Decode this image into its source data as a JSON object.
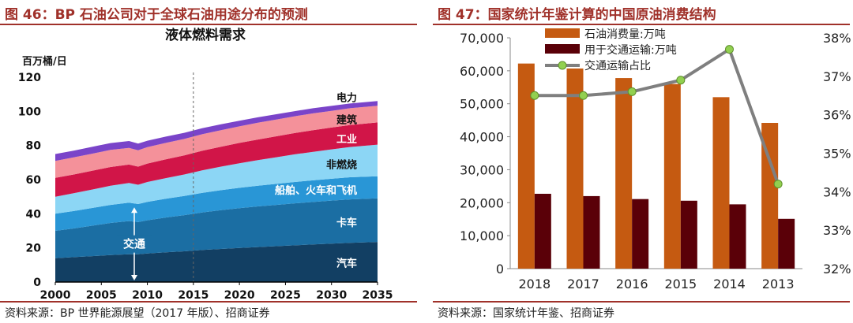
{
  "left_panel": {
    "figure_title": "图 46：BP 石油公司对于全球石油用途分布的预测",
    "source": "资料来源：BP 世界能源展望（2017 年版）、招商证券"
  },
  "right_panel": {
    "figure_title": "图 47：国家统计年鉴计算的中国原油消费结构",
    "source": "资料来源：国家统计年鉴、招商证券"
  },
  "chart_data": [
    {
      "type": "area",
      "stacked": true,
      "title": "液体燃料需求",
      "ylabel": "百万桶/日",
      "ylim": [
        0,
        120
      ],
      "yticks": [
        0,
        20,
        40,
        60,
        80,
        100,
        120
      ],
      "xlim": [
        2000,
        2035
      ],
      "xticks": [
        2000,
        2005,
        2010,
        2015,
        2020,
        2025,
        2030,
        2035
      ],
      "grid": false,
      "projection_start": 2015,
      "x": [
        2000,
        2002,
        2004,
        2006,
        2008,
        2009,
        2010,
        2012,
        2014,
        2016,
        2018,
        2020,
        2022,
        2024,
        2026,
        2028,
        2030,
        2032,
        2035
      ],
      "series": [
        {
          "name": "汽车",
          "color": "#123f63",
          "values": [
            14.0,
            14.6,
            15.2,
            15.8,
            16.3,
            16.3,
            16.7,
            17.4,
            18.0,
            18.8,
            19.4,
            20.0,
            20.5,
            21.0,
            21.5,
            22.0,
            22.5,
            23.0,
            23.5
          ]
        },
        {
          "name": "卡车",
          "color": "#1b6ea3",
          "values": [
            16.0,
            16.8,
            17.8,
            18.8,
            19.4,
            18.8,
            19.5,
            20.4,
            21.2,
            22.0,
            22.7,
            23.3,
            23.8,
            24.2,
            24.6,
            24.9,
            25.2,
            25.4,
            25.5
          ]
        },
        {
          "name": "船舶、火车和飞机",
          "color": "#2996d6",
          "values": [
            10.0,
            10.2,
            10.4,
            10.6,
            10.8,
            10.6,
            10.8,
            11.0,
            11.2,
            11.5,
            11.7,
            11.9,
            12.1,
            12.3,
            12.5,
            12.7,
            12.8,
            13.0,
            13.0
          ]
        },
        {
          "name": "非燃烧",
          "color": "#8cd6f5",
          "values": [
            10.0,
            10.4,
            10.8,
            11.2,
            11.5,
            11.3,
            11.6,
            12.1,
            12.6,
            13.2,
            13.8,
            14.4,
            15.0,
            15.6,
            16.2,
            16.7,
            17.2,
            17.7,
            18.5
          ]
        },
        {
          "name": "工业",
          "color": "#d11548",
          "values": [
            11.0,
            11.0,
            11.0,
            11.0,
            10.8,
            10.6,
            10.8,
            11.0,
            11.2,
            11.5,
            11.7,
            11.9,
            12.1,
            12.3,
            12.5,
            12.7,
            12.8,
            12.9,
            13.0
          ]
        },
        {
          "name": "建筑",
          "color": "#f4919a",
          "values": [
            10.0,
            10.0,
            10.0,
            10.0,
            9.8,
            9.6,
            9.6,
            9.6,
            9.6,
            9.7,
            9.7,
            9.7,
            9.8,
            9.8,
            9.8,
            9.8,
            9.8,
            9.8,
            9.8
          ]
        },
        {
          "name": "电力",
          "color": "#7a44c9",
          "values": [
            4.0,
            4.0,
            4.0,
            4.0,
            4.0,
            3.9,
            3.8,
            3.7,
            3.6,
            3.5,
            3.4,
            3.3,
            3.2,
            3.1,
            3.0,
            3.0,
            2.9,
            2.8,
            2.7
          ]
        }
      ],
      "annotations": [
        {
          "text": "交通"
        }
      ]
    },
    {
      "type": "bar",
      "categories": [
        "2018",
        "2017",
        "2016",
        "2015",
        "2014",
        "2013"
      ],
      "ylim": [
        0,
        70000
      ],
      "yticks": [
        0,
        10000,
        20000,
        30000,
        40000,
        50000,
        60000,
        70000
      ],
      "y2lim": [
        32,
        38
      ],
      "y2ticks": [
        32,
        33,
        34,
        35,
        36,
        37,
        38
      ],
      "legend_position": "top-left",
      "grid": false,
      "series": [
        {
          "name": "石油消费量:万吨",
          "type": "bar",
          "color": "#c55a11",
          "values": [
            62200,
            60700,
            57800,
            56000,
            52000,
            44200
          ]
        },
        {
          "name": "用于交通运输:万吨",
          "type": "bar",
          "color": "#5a0008",
          "values": [
            22700,
            22000,
            21100,
            20600,
            19500,
            15100
          ]
        },
        {
          "name": "交通运输占比",
          "type": "line",
          "axis": "right",
          "color": "#7f7f7f",
          "marker_color": "#92d050",
          "values": [
            36.5,
            36.5,
            36.6,
            36.9,
            37.7,
            34.2
          ]
        }
      ]
    }
  ]
}
